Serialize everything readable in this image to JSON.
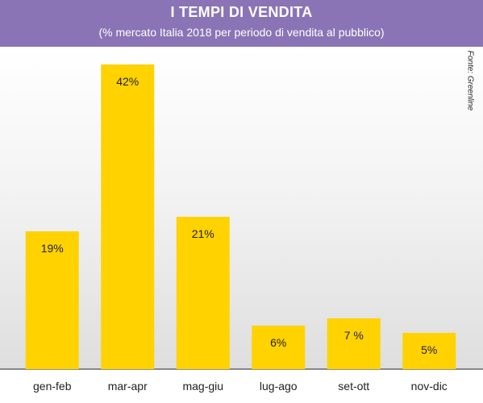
{
  "chart_data": {
    "type": "bar",
    "title": "I TEMPI DI VENDITA",
    "subtitle": "(% mercato Italia 2018 per periodo di vendita al pubblico)",
    "source": "Fonte: Greenline",
    "categories": [
      "gen-feb",
      "mar-apr",
      "mag-giu",
      "lug-ago",
      "set-ott",
      "nov-dic"
    ],
    "values": [
      19,
      42,
      21,
      6,
      7,
      5
    ],
    "value_labels": [
      "19%",
      "42%",
      "21%",
      "6%",
      "7 %",
      "5%"
    ],
    "ylim": [
      0,
      45
    ],
    "grid": false,
    "legend": "none",
    "colors": {
      "bar": "#ffd200",
      "header": "#8a74b6",
      "axis": "#222222"
    }
  }
}
